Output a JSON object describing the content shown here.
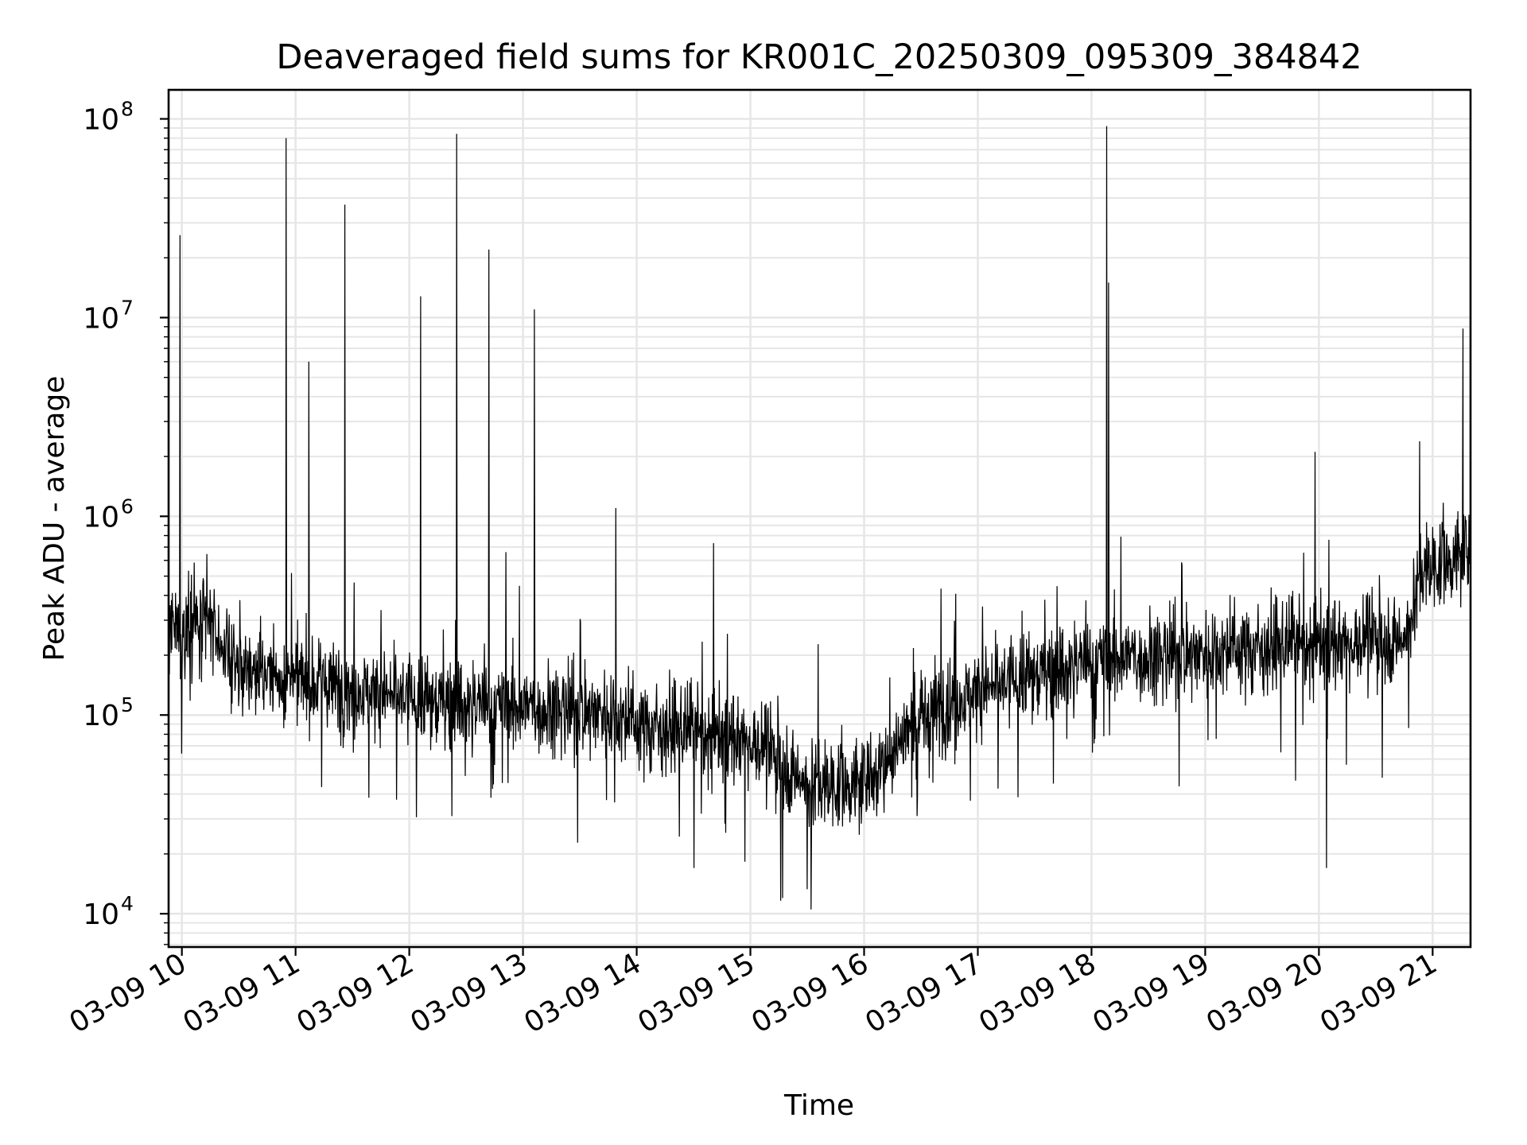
{
  "chart_data": {
    "type": "line",
    "title": "Deaveraged field sums for KR001C_20250309_095309_384842",
    "xlabel": "Time",
    "ylabel": "Peak ADU - average",
    "xlim": [
      "2025-03-09 09:53",
      "2025-03-09 21:20"
    ],
    "ylim": [
      6800,
      140000000
    ],
    "yscale": "log",
    "grid": "major+minor",
    "x_ticks": [
      "03-09 10",
      "03-09 11",
      "03-09 12",
      "03-09 13",
      "03-09 14",
      "03-09 15",
      "03-09 16",
      "03-09 17",
      "03-09 18",
      "03-09 19",
      "03-09 20",
      "03-09 21"
    ],
    "y_ticks": [
      {
        "base": "10",
        "exp": "4",
        "value": 10000
      },
      {
        "base": "10",
        "exp": "5",
        "value": 100000
      },
      {
        "base": "10",
        "exp": "6",
        "value": 1000000
      },
      {
        "base": "10",
        "exp": "7",
        "value": 10000000
      },
      {
        "base": "10",
        "exp": "8",
        "value": 100000000
      }
    ],
    "series": [
      {
        "color": "#000000",
        "baseline_profile": [
          {
            "x": "2025-03-09 09:53",
            "y": 250000
          },
          {
            "x": "2025-03-09 10:15",
            "y": 280000
          },
          {
            "x": "2025-03-09 10:30",
            "y": 170000
          },
          {
            "x": "2025-03-09 11:00",
            "y": 150000
          },
          {
            "x": "2025-03-09 12:00",
            "y": 120000
          },
          {
            "x": "2025-03-09 13:00",
            "y": 110000
          },
          {
            "x": "2025-03-09 13:45",
            "y": 105000
          },
          {
            "x": "2025-03-09 14:00",
            "y": 90000
          },
          {
            "x": "2025-03-09 15:00",
            "y": 75000
          },
          {
            "x": "2025-03-09 15:30",
            "y": 45000
          },
          {
            "x": "2025-03-09 16:00",
            "y": 45000
          },
          {
            "x": "2025-03-09 16:30",
            "y": 100000
          },
          {
            "x": "2025-03-09 17:00",
            "y": 130000
          },
          {
            "x": "2025-03-09 17:30",
            "y": 160000
          },
          {
            "x": "2025-03-09 18:00",
            "y": 190000
          },
          {
            "x": "2025-03-09 19:00",
            "y": 210000
          },
          {
            "x": "2025-03-09 20:00",
            "y": 230000
          },
          {
            "x": "2025-03-09 20:45",
            "y": 240000
          },
          {
            "x": "2025-03-09 20:55",
            "y": 550000
          },
          {
            "x": "2025-03-09 21:20",
            "y": 650000
          }
        ],
        "spikes": [
          {
            "x": "2025-03-09 09:59",
            "y": 26000000
          },
          {
            "x": "2025-03-09 10:55",
            "y": 80000000
          },
          {
            "x": "2025-03-09 11:07",
            "y": 6000000
          },
          {
            "x": "2025-03-09 11:26",
            "y": 37000000
          },
          {
            "x": "2025-03-09 12:06",
            "y": 12800000
          },
          {
            "x": "2025-03-09 12:25",
            "y": 84000000
          },
          {
            "x": "2025-03-09 12:42",
            "y": 22000000
          },
          {
            "x": "2025-03-09 12:51",
            "y": 660000
          },
          {
            "x": "2025-03-09 13:06",
            "y": 11000000
          },
          {
            "x": "2025-03-09 13:49",
            "y": 1100000
          },
          {
            "x": "2025-03-09 18:08",
            "y": 92000000
          },
          {
            "x": "2025-03-09 18:09",
            "y": 15000000
          },
          {
            "x": "2025-03-09 21:16",
            "y": 8800000
          }
        ],
        "dips": [
          {
            "x": "2025-03-09 15:17",
            "y": 12000
          },
          {
            "x": "2025-03-09 15:32",
            "y": 10500
          },
          {
            "x": "2025-03-09 20:04",
            "y": 17000
          }
        ]
      }
    ]
  }
}
